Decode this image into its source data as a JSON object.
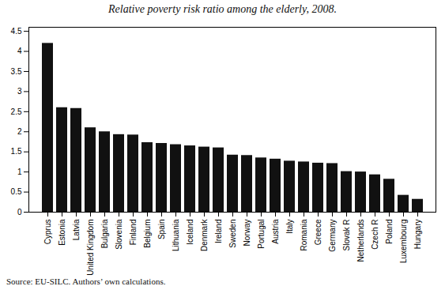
{
  "chart_data": {
    "type": "bar",
    "title": "Relative poverty risk ratio among the elderly, 2008.",
    "caption": "Source: EU-SILC. Authors’ own calculations.",
    "categories": [
      "Cyprus",
      "Estonia",
      "Latvia",
      "United Kingdom",
      "Bulgaria",
      "Slovenia",
      "Finland",
      "Belgium",
      "Spain",
      "Lithuania",
      "Iceland",
      "Denmark",
      "Ireland",
      "Sweden",
      "Norway",
      "Portugal",
      "Austria",
      "Italy",
      "Romania",
      "Greece",
      "Germany",
      "Slovak R",
      "Netherlands",
      "Czech R",
      "Poland",
      "Luxembourg",
      "Hungary"
    ],
    "values": [
      4.2,
      2.6,
      2.58,
      2.1,
      2.0,
      1.93,
      1.92,
      1.73,
      1.71,
      1.68,
      1.65,
      1.62,
      1.6,
      1.42,
      1.41,
      1.35,
      1.32,
      1.27,
      1.25,
      1.22,
      1.21,
      1.01,
      1.0,
      0.93,
      0.82,
      0.42,
      0.32
    ],
    "color": "#111111",
    "ylim": [
      0,
      4.6
    ],
    "yticks": [
      0,
      0.5,
      1,
      1.5,
      2,
      2.5,
      3,
      3.5,
      4,
      4.5
    ],
    "grid": false
  }
}
